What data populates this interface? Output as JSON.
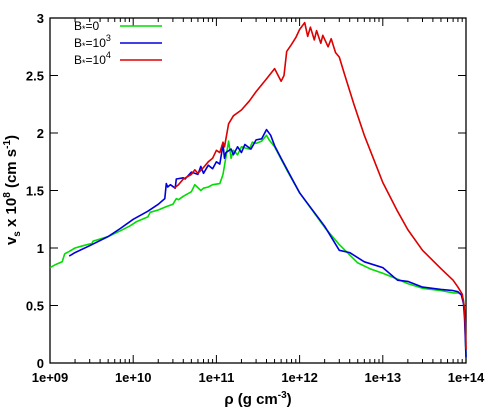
{
  "chart_data": {
    "type": "line",
    "xscale": "log",
    "xlim": [
      1000000000.0,
      100000000000000.0
    ],
    "ylim": [
      0,
      3
    ],
    "x_ticks": [
      1000000000.0,
      10000000000.0,
      100000000000.0,
      1000000000000.0,
      10000000000000.0,
      100000000000000.0
    ],
    "x_tick_labels": [
      "1e+09",
      "1e+10",
      "1e+11",
      "1e+12",
      "1e+13",
      "1e+14"
    ],
    "y_ticks": [
      0,
      0.5,
      1,
      1.5,
      2,
      2.5,
      3
    ],
    "y_tick_labels": [
      "0",
      "0.5",
      "1",
      "1.5",
      "2",
      "2.5",
      "3"
    ],
    "xlabel": {
      "base": "ρ (g cm",
      "sup": "-3",
      "tail": ")"
    },
    "ylabel": {
      "v": "v",
      "sub": "s",
      "mid": " x 10",
      "sup8": "8",
      "units": " (cm s",
      "supneg": "-1",
      "tail": ")"
    },
    "legend": {
      "position": "top-left",
      "entries": [
        {
          "prefix": "B",
          "subscript": "*",
          "text": "=0",
          "sup": ""
        },
        {
          "prefix": "B",
          "subscript": "*",
          "text": "=10",
          "sup": "3"
        },
        {
          "prefix": "B",
          "subscript": "*",
          "text": "=10",
          "sup": "4"
        }
      ]
    },
    "grid": false,
    "series": [
      {
        "name": "B*=0",
        "color": "#00dd00",
        "x": [
          1000000000.0,
          1200000000.0,
          1400000000.0,
          1500000000.0,
          1700000000.0,
          2000000000.0,
          2500000000.0,
          3200000000.0,
          3300000000.0,
          5000000000.0,
          7000000000.0,
          9000000000.0,
          10000000000.0,
          11000000000.0,
          15000000000.0,
          16000000000.0,
          20000000000.0,
          25000000000.0,
          30000000000.0,
          33000000000.0,
          35000000000.0,
          40000000000.0,
          50000000000.0,
          55000000000.0,
          65000000000.0,
          70000000000.0,
          80000000000.0,
          90000000000.0,
          110000000000.0,
          120000000000.0,
          130000000000.0,
          140000000000.0,
          150000000000.0,
          160000000000.0,
          180000000000.0,
          200000000000.0,
          220000000000.0,
          250000000000.0,
          270000000000.0,
          300000000000.0,
          350000000000.0,
          400000000000.0,
          430000000000.0,
          500000000000.0,
          700000000000.0,
          1000000000000.0,
          2000000000000.0,
          3000000000000.0,
          4000000000000.0,
          5000000000000.0,
          7000000000000.0,
          10000000000000.0,
          15000000000000.0,
          20000000000000.0,
          30000000000000.0,
          50000000000000.0,
          70000000000000.0,
          80000000000000.0,
          88000000000000.0,
          93000000000000.0,
          96000000000000.0,
          98000000000000.0,
          100000000000000.0
        ],
        "y": [
          0.83,
          0.86,
          0.88,
          0.95,
          0.97,
          1.0,
          1.02,
          1.04,
          1.06,
          1.1,
          1.15,
          1.19,
          1.21,
          1.23,
          1.27,
          1.31,
          1.33,
          1.36,
          1.38,
          1.43,
          1.42,
          1.45,
          1.49,
          1.55,
          1.5,
          1.52,
          1.53,
          1.55,
          1.56,
          1.64,
          1.79,
          1.93,
          1.78,
          1.85,
          1.81,
          1.88,
          1.87,
          1.86,
          1.92,
          1.91,
          1.93,
          1.98,
          1.94,
          1.88,
          1.68,
          1.48,
          1.18,
          1.03,
          0.94,
          0.87,
          0.82,
          0.78,
          0.73,
          0.69,
          0.65,
          0.63,
          0.61,
          0.61,
          0.6,
          0.55,
          0.45,
          0.25,
          0.05
        ]
      },
      {
        "name": "B*=10^3",
        "color": "#0000dd",
        "x": [
          1700000000.0,
          2000000000.0,
          3000000000.0,
          5000000000.0,
          7000000000.0,
          10000000000.0,
          15000000000.0,
          20000000000.0,
          24000000000.0,
          25000000000.0,
          26000000000.0,
          28000000000.0,
          32000000000.0,
          33000000000.0,
          40000000000.0,
          42000000000.0,
          50000000000.0,
          60000000000.0,
          65000000000.0,
          70000000000.0,
          80000000000.0,
          90000000000.0,
          100000000000.0,
          110000000000.0,
          120000000000.0,
          125000000000.0,
          130000000000.0,
          150000000000.0,
          160000000000.0,
          180000000000.0,
          200000000000.0,
          220000000000.0,
          260000000000.0,
          300000000000.0,
          350000000000.0,
          400000000000.0,
          450000000000.0,
          500000000000.0,
          600000000000.0,
          800000000000.0,
          1000000000000.0,
          2000000000000.0,
          3000000000000.0,
          4000000000000.0,
          6000000000000.0,
          10000000000000.0,
          15000000000000.0,
          20000000000000.0,
          30000000000000.0,
          50000000000000.0,
          70000000000000.0,
          80000000000000.0,
          88000000000000.0,
          93000000000000.0,
          96000000000000.0,
          98000000000000.0,
          100000000000000.0
        ],
        "y": [
          0.93,
          0.96,
          1.02,
          1.1,
          1.17,
          1.25,
          1.32,
          1.38,
          1.43,
          1.56,
          1.53,
          1.55,
          1.52,
          1.6,
          1.61,
          1.6,
          1.66,
          1.64,
          1.71,
          1.65,
          1.72,
          1.69,
          1.75,
          1.73,
          1.9,
          1.78,
          1.83,
          1.86,
          1.81,
          1.88,
          1.83,
          1.9,
          1.86,
          1.94,
          1.95,
          2.03,
          1.98,
          1.89,
          1.78,
          1.61,
          1.48,
          1.19,
          0.98,
          0.96,
          0.88,
          0.83,
          0.72,
          0.71,
          0.66,
          0.64,
          0.63,
          0.62,
          0.59,
          0.52,
          0.4,
          0.22,
          0.05
        ]
      },
      {
        "name": "B*=10^4",
        "color": "#dd0000",
        "x": [
          31000000000.0,
          35000000000.0,
          40000000000.0,
          50000000000.0,
          55000000000.0,
          60000000000.0,
          70000000000.0,
          80000000000.0,
          90000000000.0,
          100000000000.0,
          110000000000.0,
          120000000000.0,
          125000000000.0,
          140000000000.0,
          160000000000.0,
          200000000000.0,
          250000000000.0,
          300000000000.0,
          400000000000.0,
          500000000000.0,
          600000000000.0,
          650000000000.0,
          700000000000.0,
          800000000000.0,
          900000000000.0,
          1000000000000.0,
          1150000000000.0,
          1250000000000.0,
          1350000000000.0,
          1500000000000.0,
          1600000000000.0,
          1800000000000.0,
          1900000000000.0,
          2200000000000.0,
          2400000000000.0,
          2700000000000.0,
          3000000000000.0,
          3500000000000.0,
          4500000000000.0,
          6000000000000.0,
          8000000000000.0,
          10000000000000.0,
          15000000000000.0,
          20000000000000.0,
          30000000000000.0,
          50000000000000.0,
          70000000000000.0,
          80000000000000.0,
          90000000000000.0,
          95000000000000.0,
          98000000000000.0,
          100000000000000.0
        ],
        "y": [
          1.52,
          1.55,
          1.6,
          1.64,
          1.68,
          1.65,
          1.7,
          1.75,
          1.78,
          1.85,
          1.83,
          1.92,
          1.88,
          2.08,
          2.15,
          2.2,
          2.28,
          2.36,
          2.47,
          2.56,
          2.45,
          2.5,
          2.71,
          2.77,
          2.83,
          2.9,
          2.96,
          2.84,
          2.92,
          2.81,
          2.89,
          2.78,
          2.85,
          2.75,
          2.82,
          2.7,
          2.66,
          2.5,
          2.25,
          1.98,
          1.75,
          1.57,
          1.32,
          1.16,
          0.98,
          0.82,
          0.72,
          0.66,
          0.6,
          0.5,
          0.35,
          0.12
        ]
      }
    ]
  }
}
